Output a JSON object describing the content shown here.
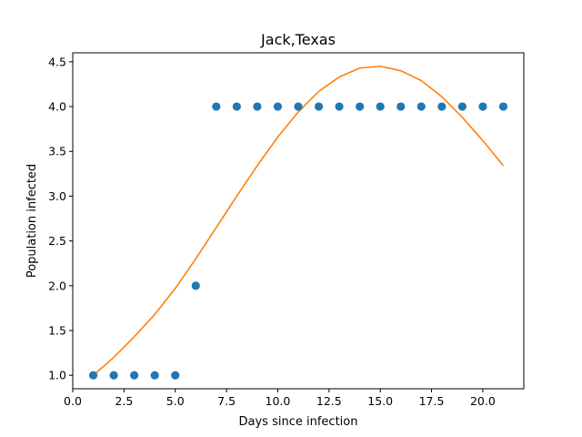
{
  "chart_data": {
    "type": "scatter",
    "title": "Jack,Texas",
    "xlabel": "Days since infection",
    "ylabel": "Population infected",
    "xlim": [
      0,
      22
    ],
    "ylim": [
      0.85,
      4.6
    ],
    "xticks": [
      0,
      2.5,
      5,
      7.5,
      10,
      12.5,
      15,
      17.5,
      20
    ],
    "xtick_labels": [
      "0.0",
      "2.5",
      "5.0",
      "7.5",
      "10.0",
      "12.5",
      "15.0",
      "17.5",
      "20.0"
    ],
    "yticks": [
      1.0,
      1.5,
      2.0,
      2.5,
      3.0,
      3.5,
      4.0,
      4.5
    ],
    "ytick_labels": [
      "1.0",
      "1.5",
      "2.0",
      "2.5",
      "3.0",
      "3.5",
      "4.0",
      "4.5"
    ],
    "grid": false,
    "series": [
      {
        "kind": "scatter",
        "color": "#1f77b4",
        "x": [
          1,
          2,
          3,
          4,
          5,
          6,
          7,
          8,
          9,
          10,
          11,
          12,
          13,
          14,
          15,
          16,
          17,
          18,
          19,
          20,
          21
        ],
        "y": [
          1,
          1,
          1,
          1,
          1,
          2,
          4,
          4,
          4,
          4,
          4,
          4,
          4,
          4,
          4,
          4,
          4,
          4,
          4,
          4,
          4
        ]
      },
      {
        "kind": "line",
        "color": "#ff7f0e",
        "x": [
          1,
          2,
          3,
          4,
          5,
          6,
          7,
          8,
          9,
          10,
          11,
          12,
          13,
          14,
          15,
          16,
          17,
          18,
          19,
          20,
          21
        ],
        "y": [
          1.0,
          1.2,
          1.43,
          1.68,
          1.97,
          2.3,
          2.65,
          3.0,
          3.34,
          3.66,
          3.94,
          4.17,
          4.33,
          4.43,
          4.45,
          4.4,
          4.29,
          4.11,
          3.88,
          3.62,
          3.34
        ]
      }
    ]
  }
}
